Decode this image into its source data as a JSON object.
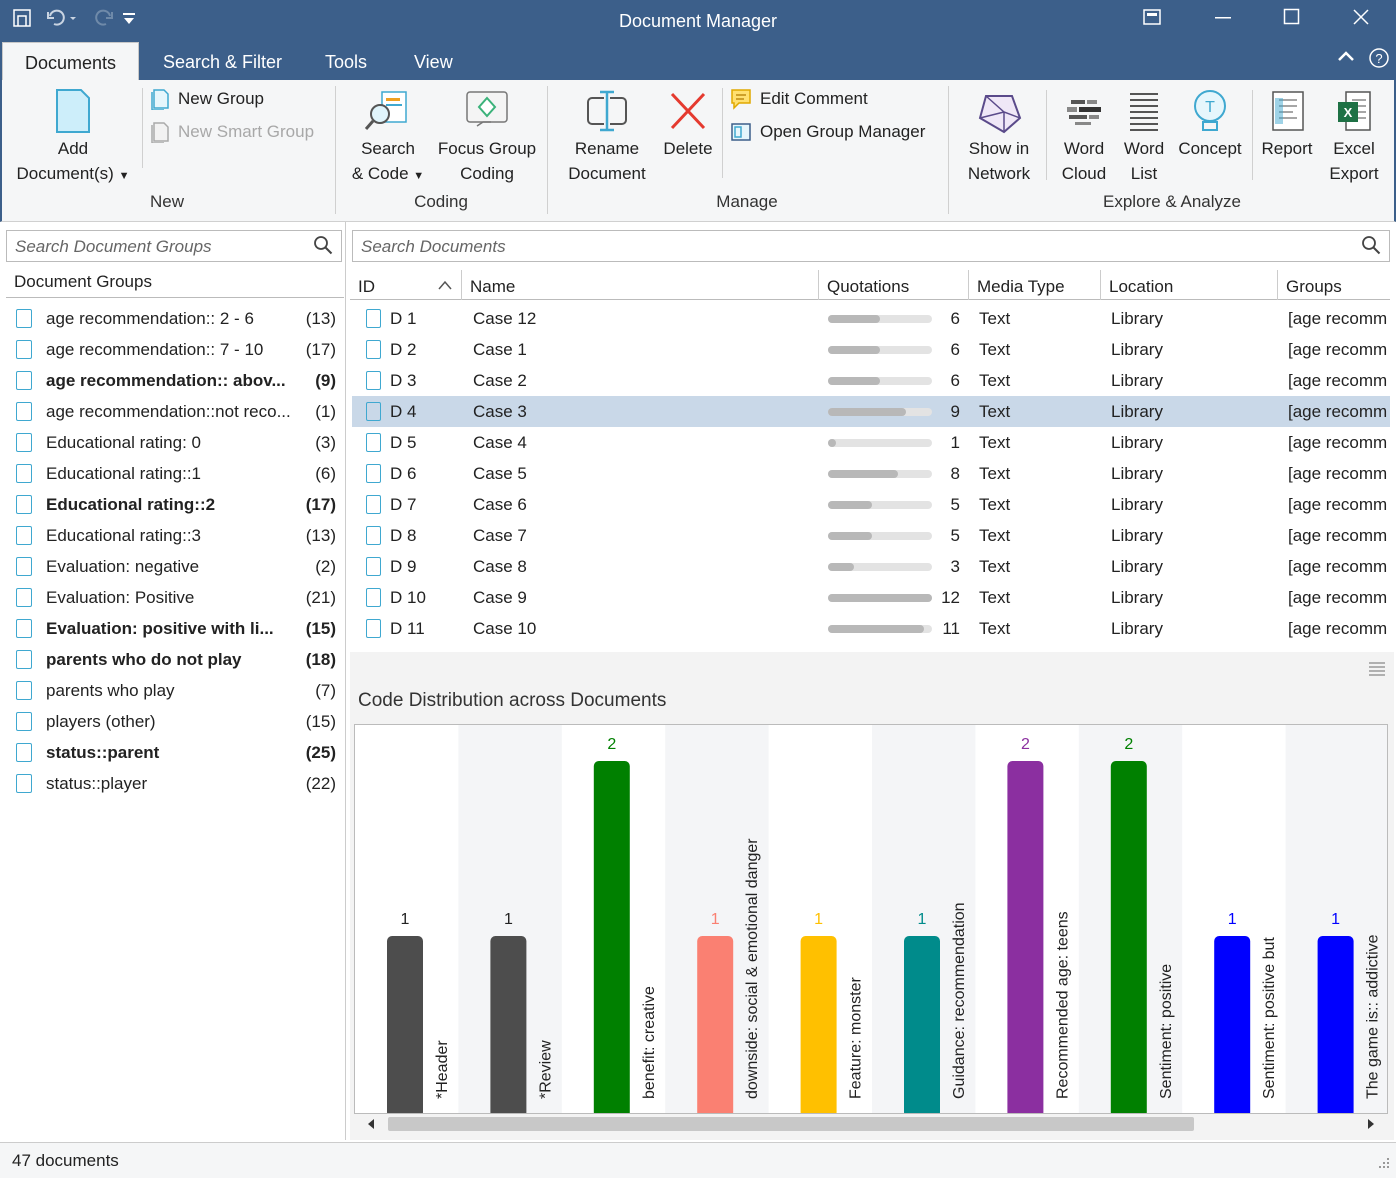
{
  "window": {
    "title": "Document Manager"
  },
  "tabs": [
    "Documents",
    "Search & Filter",
    "Tools",
    "View"
  ],
  "ribbon": {
    "add_documents": [
      "Add",
      "Document(s)"
    ],
    "new_group": "New Group",
    "new_smart_group": "New Smart Group",
    "group_new": "New",
    "search_code": [
      "Search",
      "& Code"
    ],
    "focus_group_coding": [
      "Focus Group",
      "Coding"
    ],
    "group_coding": "Coding",
    "rename_document": [
      "Rename",
      "Document"
    ],
    "delete": "Delete",
    "edit_comment": "Edit Comment",
    "open_group_manager": "Open Group Manager",
    "group_manage": "Manage",
    "show_in_network": [
      "Show in",
      "Network"
    ],
    "word_cloud": [
      "Word",
      "Cloud"
    ],
    "word_list": [
      "Word",
      "List"
    ],
    "concept": "Concept",
    "report": "Report",
    "excel_export": [
      "Excel",
      "Export"
    ],
    "group_explore": "Explore & Analyze"
  },
  "left_panel": {
    "search_placeholder": "Search Document Groups",
    "header": "Document Groups",
    "groups": [
      {
        "name": "age recommendation:: 2 - 6",
        "count": "(13)",
        "bold": false
      },
      {
        "name": "age recommendation:: 7 - 10",
        "count": "(17)",
        "bold": false
      },
      {
        "name": "age recommendation:: abov...",
        "count": "(9)",
        "bold": true
      },
      {
        "name": "age recommendation::not reco...",
        "count": "(1)",
        "bold": false
      },
      {
        "name": "Educational rating: 0",
        "count": "(3)",
        "bold": false
      },
      {
        "name": "Educational rating::1",
        "count": "(6)",
        "bold": false
      },
      {
        "name": "Educational rating::2",
        "count": "(17)",
        "bold": true
      },
      {
        "name": "Educational rating::3",
        "count": "(13)",
        "bold": false
      },
      {
        "name": "Evaluation: negative",
        "count": "(2)",
        "bold": false
      },
      {
        "name": "Evaluation: Positive",
        "count": "(21)",
        "bold": false
      },
      {
        "name": "Evaluation: positive with li...",
        "count": "(15)",
        "bold": true
      },
      {
        "name": "parents who do not play",
        "count": "(18)",
        "bold": true
      },
      {
        "name": "parents who play",
        "count": "(7)",
        "bold": false
      },
      {
        "name": "players (other)",
        "count": "(15)",
        "bold": false
      },
      {
        "name": "status::parent",
        "count": "(25)",
        "bold": true
      },
      {
        "name": "status::player",
        "count": "(22)",
        "bold": false
      }
    ]
  },
  "documents": {
    "search_placeholder": "Search Documents",
    "columns": [
      "ID",
      "Name",
      "Quotations",
      "Media Type",
      "Location",
      "Groups"
    ],
    "rows": [
      {
        "id": "D 1",
        "name": "Case 12",
        "quotations": 6,
        "media": "Text",
        "location": "Library",
        "groups": "[age recomm",
        "selected": false
      },
      {
        "id": "D 2",
        "name": "Case 1",
        "quotations": 6,
        "media": "Text",
        "location": "Library",
        "groups": "[age recomm",
        "selected": false
      },
      {
        "id": "D 3",
        "name": "Case 2",
        "quotations": 6,
        "media": "Text",
        "location": "Library",
        "groups": "[age recomm",
        "selected": false
      },
      {
        "id": "D 4",
        "name": "Case 3",
        "quotations": 9,
        "media": "Text",
        "location": "Library",
        "groups": "[age recomm",
        "selected": true
      },
      {
        "id": "D 5",
        "name": "Case 4",
        "quotations": 1,
        "media": "Text",
        "location": "Library",
        "groups": "[age recomm",
        "selected": false
      },
      {
        "id": "D 6",
        "name": "Case 5",
        "quotations": 8,
        "media": "Text",
        "location": "Library",
        "groups": "[age recomm",
        "selected": false
      },
      {
        "id": "D 7",
        "name": "Case 6",
        "quotations": 5,
        "media": "Text",
        "location": "Library",
        "groups": "[age recomm",
        "selected": false
      },
      {
        "id": "D 8",
        "name": "Case 7",
        "quotations": 5,
        "media": "Text",
        "location": "Library",
        "groups": "[age recomm",
        "selected": false
      },
      {
        "id": "D 9",
        "name": "Case 8",
        "quotations": 3,
        "media": "Text",
        "location": "Library",
        "groups": "[age recomm",
        "selected": false
      },
      {
        "id": "D 10",
        "name": "Case 9",
        "quotations": 12,
        "media": "Text",
        "location": "Library",
        "groups": "[age recomm",
        "selected": false
      },
      {
        "id": "D 11",
        "name": "Case 10",
        "quotations": 11,
        "media": "Text",
        "location": "Library",
        "groups": "[age recomm",
        "selected": false
      }
    ]
  },
  "chart_data": {
    "type": "bar",
    "title": "Code Distribution across Documents",
    "categories": [
      "*Header",
      "*Review",
      "benefit: creative",
      "downside: social & emotional danger",
      "Feature: monster",
      "Guidance: recommendation",
      "Recommended age: teens",
      "Sentiment: positive",
      "Sentiment: positive but",
      "The game is:: addictive"
    ],
    "values": [
      1,
      1,
      2,
      1,
      1,
      1,
      2,
      2,
      1,
      1
    ],
    "colors": [
      "#4d4d4d",
      "#4d4d4d",
      "#008000",
      "#fa8072",
      "#ffc000",
      "#008b8b",
      "#8b2fa0",
      "#008000",
      "#0000ff",
      "#0000ff"
    ],
    "ylim": [
      0,
      2
    ]
  },
  "status": {
    "text": "47 documents"
  }
}
